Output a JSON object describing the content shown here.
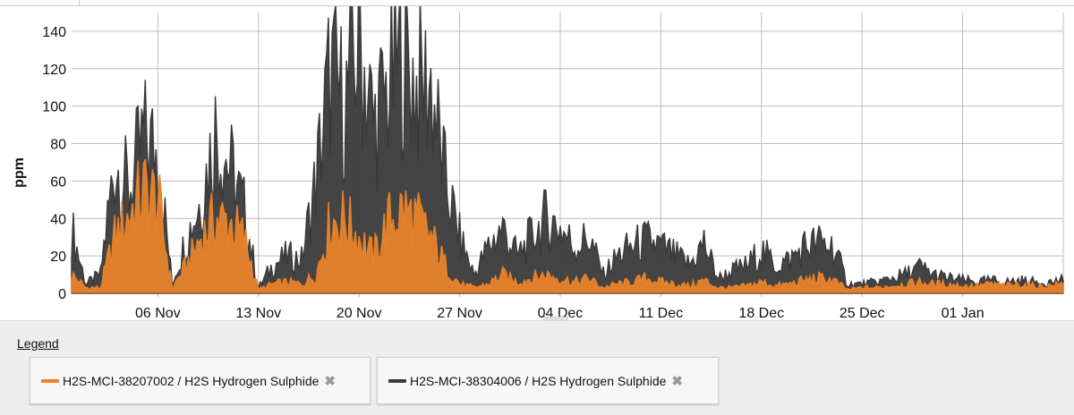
{
  "chart_data": {
    "type": "area",
    "ylabel": "ppm",
    "xlabel": "",
    "ylim": [
      0,
      150
    ],
    "y_ticks": [
      0,
      20,
      40,
      60,
      80,
      100,
      120,
      140
    ],
    "x_range": [
      "2023-10-31",
      "2024-01-08"
    ],
    "x_ticks": [
      {
        "date": "2023-11-06",
        "label": "06 Nov"
      },
      {
        "date": "2023-11-13",
        "label": "13 Nov"
      },
      {
        "date": "2023-11-20",
        "label": "20 Nov"
      },
      {
        "date": "2023-11-27",
        "label": "27 Nov"
      },
      {
        "date": "2023-12-04",
        "label": "04 Dec"
      },
      {
        "date": "2023-12-11",
        "label": "11 Dec"
      },
      {
        "date": "2023-12-18",
        "label": "18 Dec"
      },
      {
        "date": "2023-12-25",
        "label": "25 Dec"
      },
      {
        "date": "2024-01-01",
        "label": "01 Jan"
      }
    ],
    "grid": true,
    "legend_position": "bottom",
    "series": [
      {
        "name": "H2S-MCI-38304006 / H2S Hydrogen Sulphide",
        "color": "#3a3a3a",
        "points": [
          [
            "2023-10-31",
            35
          ],
          [
            "2023-11-01",
            5
          ],
          [
            "2023-11-02",
            10
          ],
          [
            "2023-11-03",
            70
          ],
          [
            "2023-11-04",
            55
          ],
          [
            "2023-11-05",
            83
          ],
          [
            "2023-11-06",
            75
          ],
          [
            "2023-11-07",
            5
          ],
          [
            "2023-11-08",
            30
          ],
          [
            "2023-11-09",
            50
          ],
          [
            "2023-11-10",
            87
          ],
          [
            "2023-11-11",
            68
          ],
          [
            "2023-11-12",
            45
          ],
          [
            "2023-11-13",
            3
          ],
          [
            "2023-11-14",
            15
          ],
          [
            "2023-11-15",
            20
          ],
          [
            "2023-11-16",
            18
          ],
          [
            "2023-11-17",
            60
          ],
          [
            "2023-11-18",
            118
          ],
          [
            "2023-11-19",
            100
          ],
          [
            "2023-11-20",
            137
          ],
          [
            "2023-11-21",
            90
          ],
          [
            "2023-11-22",
            108
          ],
          [
            "2023-11-23",
            128
          ],
          [
            "2023-11-24",
            110
          ],
          [
            "2023-11-25",
            112
          ],
          [
            "2023-11-26",
            60
          ],
          [
            "2023-11-27",
            30
          ],
          [
            "2023-11-28",
            10
          ],
          [
            "2023-11-29",
            25
          ],
          [
            "2023-11-30",
            35
          ],
          [
            "2023-12-01",
            20
          ],
          [
            "2023-12-02",
            30
          ],
          [
            "2023-12-03",
            40
          ],
          [
            "2023-12-04",
            35
          ],
          [
            "2023-12-05",
            25
          ],
          [
            "2023-12-06",
            30
          ],
          [
            "2023-12-07",
            10
          ],
          [
            "2023-12-08",
            20
          ],
          [
            "2023-12-09",
            25
          ],
          [
            "2023-12-10",
            28
          ],
          [
            "2023-12-11",
            25
          ],
          [
            "2023-12-12",
            20
          ],
          [
            "2023-12-13",
            15
          ],
          [
            "2023-12-14",
            27
          ],
          [
            "2023-12-15",
            8
          ],
          [
            "2023-12-16",
            12
          ],
          [
            "2023-12-17",
            15
          ],
          [
            "2023-12-18",
            23
          ],
          [
            "2023-12-19",
            15
          ],
          [
            "2023-12-20",
            18
          ],
          [
            "2023-12-21",
            25
          ],
          [
            "2023-12-22",
            27
          ],
          [
            "2023-12-23",
            25
          ],
          [
            "2023-12-24",
            5
          ],
          [
            "2023-12-25",
            5
          ],
          [
            "2023-12-26",
            6
          ],
          [
            "2023-12-27",
            8
          ],
          [
            "2023-12-28",
            10
          ],
          [
            "2023-12-29",
            14
          ],
          [
            "2023-12-30",
            10
          ],
          [
            "2023-12-31",
            8
          ],
          [
            "2024-01-01",
            7
          ],
          [
            "2024-01-02",
            6
          ],
          [
            "2024-01-03",
            7
          ],
          [
            "2024-01-04",
            6
          ],
          [
            "2024-01-05",
            7
          ],
          [
            "2024-01-06",
            6
          ],
          [
            "2024-01-07",
            6
          ],
          [
            "2024-01-08",
            7
          ]
        ]
      },
      {
        "name": "H2S-MCI-38207002 / H2S Hydrogen Sulphide",
        "color": "#e8822a",
        "points": [
          [
            "2023-10-31",
            10
          ],
          [
            "2023-11-01",
            3
          ],
          [
            "2023-11-02",
            3
          ],
          [
            "2023-11-03",
            30
          ],
          [
            "2023-11-04",
            42
          ],
          [
            "2023-11-05",
            55
          ],
          [
            "2023-11-06",
            50
          ],
          [
            "2023-11-07",
            3
          ],
          [
            "2023-11-08",
            15
          ],
          [
            "2023-11-09",
            30
          ],
          [
            "2023-11-10",
            40
          ],
          [
            "2023-11-11",
            38
          ],
          [
            "2023-11-12",
            30
          ],
          [
            "2023-11-13",
            2
          ],
          [
            "2023-11-14",
            5
          ],
          [
            "2023-11-15",
            6
          ],
          [
            "2023-11-16",
            5
          ],
          [
            "2023-11-17",
            10
          ],
          [
            "2023-11-18",
            38
          ],
          [
            "2023-11-19",
            40
          ],
          [
            "2023-11-20",
            30
          ],
          [
            "2023-11-21",
            20
          ],
          [
            "2023-11-22",
            38
          ],
          [
            "2023-11-23",
            45
          ],
          [
            "2023-11-24",
            40
          ],
          [
            "2023-11-25",
            30
          ],
          [
            "2023-11-26",
            15
          ],
          [
            "2023-11-27",
            5
          ],
          [
            "2023-11-28",
            3
          ],
          [
            "2023-11-29",
            5
          ],
          [
            "2023-11-30",
            10
          ],
          [
            "2023-12-01",
            6
          ],
          [
            "2023-12-02",
            8
          ],
          [
            "2023-12-03",
            10
          ],
          [
            "2023-12-04",
            8
          ],
          [
            "2023-12-05",
            6
          ],
          [
            "2023-12-06",
            8
          ],
          [
            "2023-12-07",
            3
          ],
          [
            "2023-12-08",
            5
          ],
          [
            "2023-12-09",
            6
          ],
          [
            "2023-12-10",
            8
          ],
          [
            "2023-12-11",
            6
          ],
          [
            "2023-12-12",
            5
          ],
          [
            "2023-12-13",
            4
          ],
          [
            "2023-12-14",
            7
          ],
          [
            "2023-12-15",
            3
          ],
          [
            "2023-12-16",
            3
          ],
          [
            "2023-12-17",
            4
          ],
          [
            "2023-12-18",
            6
          ],
          [
            "2023-12-19",
            4
          ],
          [
            "2023-12-20",
            5
          ],
          [
            "2023-12-21",
            7
          ],
          [
            "2023-12-22",
            8
          ],
          [
            "2023-12-23",
            7
          ],
          [
            "2023-12-24",
            2
          ],
          [
            "2023-12-25",
            3
          ],
          [
            "2023-12-26",
            3
          ],
          [
            "2023-12-27",
            4
          ],
          [
            "2023-12-28",
            5
          ],
          [
            "2023-12-29",
            6
          ],
          [
            "2023-12-30",
            5
          ],
          [
            "2023-12-31",
            5
          ],
          [
            "2024-01-01",
            4
          ],
          [
            "2024-01-02",
            4
          ],
          [
            "2024-01-03",
            5
          ],
          [
            "2024-01-04",
            4
          ],
          [
            "2024-01-05",
            5
          ],
          [
            "2024-01-06",
            4
          ],
          [
            "2024-01-07",
            4
          ],
          [
            "2024-01-08",
            5
          ]
        ]
      }
    ]
  },
  "legend": {
    "title": "Legend",
    "items": [
      {
        "label": "H2S-MCI-38207002 / H2S Hydrogen Sulphide",
        "color": "#e8822a"
      },
      {
        "label": "H2S-MCI-38304006 / H2S Hydrogen Sulphide",
        "color": "#3a3a3a"
      }
    ],
    "remove_glyph": "✖"
  }
}
